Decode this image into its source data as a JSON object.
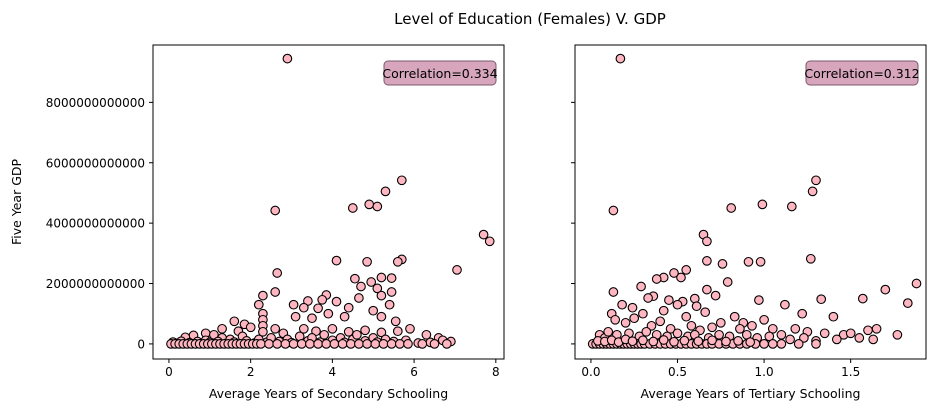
{
  "figure": {
    "suptitle": "Level of Education (Females) V. GDP",
    "point_fill": "#ffb6c1",
    "point_edge": "#000000",
    "box_fill": "#d8a6bc",
    "box_edge": "#7a5a6a"
  },
  "chart_data": [
    {
      "type": "scatter",
      "xlabel": "Average Years of Secondary Schooling",
      "ylabel": "Five Year GDP",
      "xlim": [
        -0.39,
        8.2
      ],
      "ylim": [
        -500000000000,
        9900000000000
      ],
      "xticks": [
        0,
        2,
        4,
        6,
        8
      ],
      "xtick_labels": [
        "0",
        "2",
        "4",
        "6",
        "8"
      ],
      "yticks": [
        0,
        2000000000000,
        4000000000000,
        6000000000000,
        8000000000000
      ],
      "ytick_labels": [
        "0",
        "2000000000000",
        "4000000000000",
        "6000000000000",
        "8000000000000"
      ],
      "annotation": "Correlation=0.334",
      "points": [
        [
          2.9,
          9450000000000
        ],
        [
          5.7,
          5420000000000
        ],
        [
          5.3,
          5050000000000
        ],
        [
          2.6,
          4420000000000
        ],
        [
          4.9,
          4620000000000
        ],
        [
          4.5,
          4500000000000
        ],
        [
          5.1,
          4550000000000
        ],
        [
          7.7,
          3620000000000
        ],
        [
          7.85,
          3400000000000
        ],
        [
          5.7,
          2800000000000
        ],
        [
          5.6,
          2720000000000
        ],
        [
          4.1,
          2760000000000
        ],
        [
          4.85,
          2720000000000
        ],
        [
          2.65,
          2350000000000
        ],
        [
          5.2,
          2200000000000
        ],
        [
          5.45,
          2180000000000
        ],
        [
          4.55,
          2160000000000
        ],
        [
          7.05,
          2450000000000
        ],
        [
          4.7,
          1900000000000
        ],
        [
          5.1,
          1840000000000
        ],
        [
          5.45,
          1720000000000
        ],
        [
          2.6,
          1720000000000
        ],
        [
          4.95,
          2050000000000
        ],
        [
          5.2,
          1600000000000
        ],
        [
          3.85,
          1620000000000
        ],
        [
          3.75,
          1460000000000
        ],
        [
          3.4,
          1420000000000
        ],
        [
          4.1,
          1400000000000
        ],
        [
          2.3,
          1600000000000
        ],
        [
          2.2,
          1300000000000
        ],
        [
          3.05,
          1300000000000
        ],
        [
          3.3,
          1200000000000
        ],
        [
          3.65,
          1180000000000
        ],
        [
          4.65,
          1520000000000
        ],
        [
          4.4,
          1200000000000
        ],
        [
          5.4,
          1300000000000
        ],
        [
          5.0,
          1100000000000
        ],
        [
          2.3,
          1000000000000
        ],
        [
          2.3,
          800000000000
        ],
        [
          2.3,
          600000000000
        ],
        [
          2.3,
          400000000000
        ],
        [
          3.1,
          900000000000
        ],
        [
          3.5,
          850000000000
        ],
        [
          3.9,
          1000000000000
        ],
        [
          4.3,
          900000000000
        ],
        [
          5.2,
          900000000000
        ],
        [
          5.55,
          750000000000
        ],
        [
          1.6,
          750000000000
        ],
        [
          1.85,
          650000000000
        ],
        [
          2.0,
          550000000000
        ],
        [
          1.3,
          500000000000
        ],
        [
          1.7,
          420000000000
        ],
        [
          0.9,
          350000000000
        ],
        [
          1.1,
          300000000000
        ],
        [
          0.6,
          280000000000
        ],
        [
          0.4,
          220000000000
        ],
        [
          1.3,
          200000000000
        ],
        [
          1.8,
          250000000000
        ],
        [
          2.6,
          500000000000
        ],
        [
          2.8,
          350000000000
        ],
        [
          3.3,
          500000000000
        ],
        [
          3.6,
          420000000000
        ],
        [
          4.0,
          500000000000
        ],
        [
          4.4,
          400000000000
        ],
        [
          4.8,
          450000000000
        ],
        [
          5.2,
          380000000000
        ],
        [
          5.6,
          420000000000
        ],
        [
          5.9,
          500000000000
        ],
        [
          6.3,
          300000000000
        ],
        [
          6.6,
          200000000000
        ],
        [
          6.7,
          120000000000
        ],
        [
          6.9,
          80000000000
        ],
        [
          6.4,
          50000000000
        ],
        [
          6.1,
          30000000000
        ],
        [
          0.1,
          60000000000
        ],
        [
          0.2,
          20000000000
        ],
        [
          0.3,
          90000000000
        ],
        [
          0.5,
          40000000000
        ],
        [
          0.7,
          80000000000
        ],
        [
          0.8,
          10000000000
        ],
        [
          0.9,
          120000000000
        ],
        [
          1.0,
          50000000000
        ],
        [
          1.2,
          80000000000
        ],
        [
          1.4,
          20000000000
        ],
        [
          1.5,
          150000000000
        ],
        [
          1.6,
          60000000000
        ],
        [
          1.9,
          100000000000
        ],
        [
          2.1,
          30000000000
        ],
        [
          2.2,
          150000000000
        ],
        [
          2.4,
          60000000000
        ],
        [
          2.5,
          200000000000
        ],
        [
          2.7,
          80000000000
        ],
        [
          2.9,
          150000000000
        ],
        [
          3.0,
          40000000000
        ],
        [
          3.2,
          250000000000
        ],
        [
          3.4,
          100000000000
        ],
        [
          3.5,
          200000000000
        ],
        [
          3.7,
          60000000000
        ],
        [
          3.8,
          300000000000
        ],
        [
          4.0,
          120000000000
        ],
        [
          4.2,
          200000000000
        ],
        [
          4.3,
          50000000000
        ],
        [
          4.5,
          150000000000
        ],
        [
          4.6,
          300000000000
        ],
        [
          4.8,
          100000000000
        ],
        [
          5.0,
          200000000000
        ],
        [
          5.1,
          60000000000
        ],
        [
          5.3,
          150000000000
        ],
        [
          5.5,
          80000000000
        ],
        [
          5.8,
          120000000000
        ],
        [
          0.05,
          0
        ],
        [
          0.15,
          0
        ],
        [
          0.25,
          0
        ],
        [
          0.35,
          0
        ],
        [
          0.45,
          0
        ],
        [
          0.55,
          0
        ],
        [
          0.65,
          0
        ],
        [
          0.75,
          0
        ],
        [
          0.85,
          0
        ],
        [
          0.95,
          0
        ],
        [
          1.05,
          0
        ],
        [
          1.15,
          0
        ],
        [
          1.25,
          0
        ],
        [
          1.35,
          0
        ],
        [
          1.45,
          0
        ],
        [
          1.55,
          0
        ],
        [
          1.65,
          0
        ],
        [
          1.75,
          0
        ],
        [
          1.85,
          0
        ],
        [
          1.95,
          0
        ],
        [
          2.05,
          0
        ],
        [
          2.15,
          0
        ],
        [
          2.25,
          0
        ],
        [
          2.45,
          0
        ],
        [
          2.65,
          0
        ],
        [
          2.85,
          0
        ],
        [
          3.05,
          0
        ],
        [
          3.25,
          0
        ],
        [
          3.45,
          0
        ],
        [
          3.65,
          0
        ],
        [
          3.85,
          0
        ],
        [
          4.05,
          0
        ],
        [
          4.25,
          0
        ],
        [
          4.45,
          0
        ],
        [
          4.65,
          0
        ],
        [
          4.85,
          0
        ],
        [
          5.05,
          0
        ],
        [
          5.25,
          0
        ],
        [
          5.45,
          0
        ],
        [
          5.65,
          0
        ],
        [
          5.85,
          0
        ],
        [
          6.2,
          0
        ],
        [
          6.5,
          0
        ],
        [
          6.8,
          0
        ]
      ]
    },
    {
      "type": "scatter",
      "xlabel": "Average Years of Tertiary Schooling",
      "ylabel": "",
      "xlim": [
        -0.092,
        1.935
      ],
      "ylim": [
        -500000000000,
        9900000000000
      ],
      "xticks": [
        0,
        0.5,
        1,
        1.5
      ],
      "xtick_labels": [
        "0.0",
        "0.5",
        "1.0",
        "1.5"
      ],
      "yticks": [
        0,
        2000000000000,
        4000000000000,
        6000000000000,
        8000000000000
      ],
      "ytick_labels": [],
      "annotation": "Correlation=0.312",
      "points": [
        [
          0.17,
          9450000000000
        ],
        [
          1.3,
          5420000000000
        ],
        [
          1.28,
          5050000000000
        ],
        [
          0.13,
          4420000000000
        ],
        [
          0.99,
          4620000000000
        ],
        [
          0.81,
          4500000000000
        ],
        [
          1.16,
          4550000000000
        ],
        [
          0.65,
          3620000000000
        ],
        [
          0.67,
          3400000000000
        ],
        [
          0.98,
          2720000000000
        ],
        [
          0.91,
          2720000000000
        ],
        [
          1.27,
          2820000000000
        ],
        [
          0.76,
          2650000000000
        ],
        [
          0.67,
          2750000000000
        ],
        [
          0.55,
          2450000000000
        ],
        [
          0.48,
          2350000000000
        ],
        [
          0.42,
          2200000000000
        ],
        [
          0.38,
          2150000000000
        ],
        [
          0.52,
          2200000000000
        ],
        [
          0.29,
          1900000000000
        ],
        [
          0.13,
          1720000000000
        ],
        [
          1.88,
          2000000000000
        ],
        [
          1.7,
          1800000000000
        ],
        [
          0.36,
          1580000000000
        ],
        [
          0.33,
          1520000000000
        ],
        [
          0.45,
          1450000000000
        ],
        [
          0.53,
          1400000000000
        ],
        [
          0.6,
          1500000000000
        ],
        [
          0.67,
          1800000000000
        ],
        [
          0.72,
          1600000000000
        ],
        [
          0.79,
          2050000000000
        ],
        [
          0.97,
          1450000000000
        ],
        [
          1.33,
          1480000000000
        ],
        [
          1.57,
          1500000000000
        ],
        [
          1.83,
          1350000000000
        ],
        [
          0.18,
          1300000000000
        ],
        [
          0.24,
          1200000000000
        ],
        [
          0.3,
          1000000000000
        ],
        [
          0.42,
          1100000000000
        ],
        [
          0.5,
          1300000000000
        ],
        [
          0.55,
          900000000000
        ],
        [
          0.61,
          1250000000000
        ],
        [
          0.66,
          1050000000000
        ],
        [
          0.83,
          900000000000
        ],
        [
          0.88,
          700000000000
        ],
        [
          1.0,
          800000000000
        ],
        [
          1.12,
          1300000000000
        ],
        [
          1.22,
          1000000000000
        ],
        [
          1.4,
          900000000000
        ],
        [
          0.12,
          1000000000000
        ],
        [
          0.14,
          800000000000
        ],
        [
          0.2,
          700000000000
        ],
        [
          0.25,
          850000000000
        ],
        [
          0.35,
          600000000000
        ],
        [
          0.4,
          750000000000
        ],
        [
          0.46,
          500000000000
        ],
        [
          0.58,
          600000000000
        ],
        [
          0.63,
          450000000000
        ],
        [
          0.7,
          550000000000
        ],
        [
          0.75,
          700000000000
        ],
        [
          0.86,
          500000000000
        ],
        [
          0.93,
          600000000000
        ],
        [
          1.05,
          500000000000
        ],
        [
          1.18,
          500000000000
        ],
        [
          1.25,
          400000000000
        ],
        [
          1.35,
          350000000000
        ],
        [
          1.46,
          300000000000
        ],
        [
          1.5,
          350000000000
        ],
        [
          1.6,
          450000000000
        ],
        [
          1.65,
          500000000000
        ],
        [
          1.77,
          300000000000
        ],
        [
          0.05,
          300000000000
        ],
        [
          0.08,
          200000000000
        ],
        [
          0.1,
          400000000000
        ],
        [
          0.15,
          300000000000
        ],
        [
          0.22,
          350000000000
        ],
        [
          0.28,
          250000000000
        ],
        [
          0.32,
          400000000000
        ],
        [
          0.38,
          300000000000
        ],
        [
          0.44,
          250000000000
        ],
        [
          0.5,
          350000000000
        ],
        [
          0.56,
          250000000000
        ],
        [
          0.6,
          300000000000
        ],
        [
          0.68,
          200000000000
        ],
        [
          0.74,
          300000000000
        ],
        [
          0.8,
          250000000000
        ],
        [
          0.9,
          300000000000
        ],
        [
          0.96,
          200000000000
        ],
        [
          1.03,
          250000000000
        ],
        [
          1.1,
          300000000000
        ],
        [
          1.15,
          150000000000
        ],
        [
          1.23,
          200000000000
        ],
        [
          1.3,
          100000000000
        ],
        [
          1.42,
          150000000000
        ],
        [
          1.55,
          200000000000
        ],
        [
          1.63,
          150000000000
        ],
        [
          0.01,
          0
        ],
        [
          0.03,
          0
        ],
        [
          0.05,
          0
        ],
        [
          0.07,
          0
        ],
        [
          0.09,
          0
        ],
        [
          0.11,
          0
        ],
        [
          0.13,
          0
        ],
        [
          0.15,
          0
        ],
        [
          0.17,
          0
        ],
        [
          0.19,
          0
        ],
        [
          0.21,
          0
        ],
        [
          0.23,
          0
        ],
        [
          0.25,
          0
        ],
        [
          0.27,
          0
        ],
        [
          0.29,
          0
        ],
        [
          0.31,
          0
        ],
        [
          0.34,
          0
        ],
        [
          0.37,
          0
        ],
        [
          0.4,
          0
        ],
        [
          0.43,
          0
        ],
        [
          0.46,
          0
        ],
        [
          0.49,
          0
        ],
        [
          0.52,
          0
        ],
        [
          0.55,
          0
        ],
        [
          0.58,
          0
        ],
        [
          0.61,
          0
        ],
        [
          0.64,
          0
        ],
        [
          0.67,
          0
        ],
        [
          0.7,
          0
        ],
        [
          0.74,
          0
        ],
        [
          0.78,
          0
        ],
        [
          0.82,
          0
        ],
        [
          0.86,
          0
        ],
        [
          0.9,
          0
        ],
        [
          0.95,
          0
        ],
        [
          1.0,
          0
        ],
        [
          1.05,
          0
        ],
        [
          1.1,
          0
        ],
        [
          1.2,
          0
        ],
        [
          1.3,
          0
        ],
        [
          0.04,
          100000000000
        ],
        [
          0.08,
          80000000000
        ],
        [
          0.12,
          120000000000
        ],
        [
          0.16,
          60000000000
        ],
        [
          0.2,
          150000000000
        ],
        [
          0.24,
          90000000000
        ],
        [
          0.3,
          120000000000
        ],
        [
          0.36,
          80000000000
        ],
        [
          0.42,
          130000000000
        ],
        [
          0.48,
          70000000000
        ],
        [
          0.54,
          110000000000
        ],
        [
          0.62,
          90000000000
        ],
        [
          0.7,
          120000000000
        ],
        [
          0.78,
          80000000000
        ],
        [
          0.85,
          100000000000
        ],
        [
          0.92,
          60000000000
        ]
      ]
    }
  ]
}
